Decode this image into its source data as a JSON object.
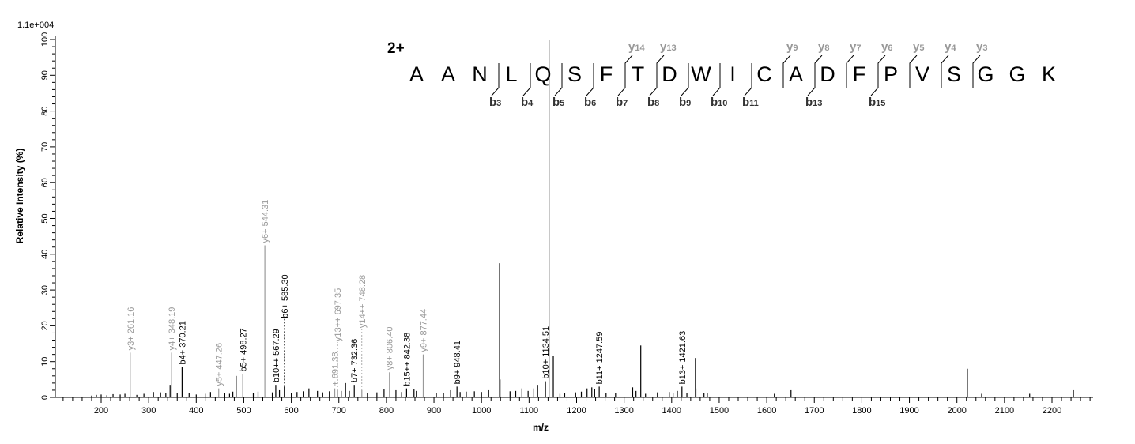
{
  "chart_data": {
    "type": "bar",
    "xlabel": "m/z",
    "ylabel": "Relative  Intensity (%)",
    "scale_label": "1.1e+004",
    "xlim": [
      103,
      2286
    ],
    "ylim": [
      0,
      100
    ],
    "x_ticks": [
      200,
      300,
      400,
      500,
      600,
      700,
      800,
      900,
      1000,
      1100,
      1200,
      1300,
      1400,
      1500,
      1600,
      1700,
      1800,
      1900,
      2000,
      2100,
      2200
    ],
    "y_ticks": [
      0,
      10,
      20,
      30,
      40,
      50,
      60,
      70,
      80,
      90,
      100
    ],
    "grid": false,
    "colors": {
      "b_ion": "#000000",
      "y_ion": "#999999",
      "unlabeled": "#000000"
    },
    "charge_label": "2+",
    "sequence": [
      "A",
      "A",
      "N",
      "L",
      "Q",
      "S",
      "F",
      "T",
      "D",
      "W",
      "I",
      "C",
      "A",
      "D",
      "F",
      "P",
      "V",
      "S",
      "G",
      "G",
      "K"
    ],
    "b_ions": [
      3,
      4,
      5,
      6,
      7,
      8,
      9,
      10,
      11,
      13,
      15
    ],
    "y_ions": [
      14,
      13,
      9,
      8,
      7,
      6,
      5,
      4,
      3
    ],
    "labeled_peaks": [
      {
        "mz": 261.16,
        "intensity": 12.5,
        "label": "y3+ 261.16",
        "ion": "y"
      },
      {
        "mz": 348.19,
        "intensity": 12.5,
        "label": "y4+ 348.19",
        "ion": "y"
      },
      {
        "mz": 370.21,
        "intensity": 8.5,
        "label": "b4+ 370.21",
        "ion": "b"
      },
      {
        "mz": 447.26,
        "intensity": 2.5,
        "label": "y5+ 447.26",
        "ion": "y"
      },
      {
        "mz": 498.27,
        "intensity": 6.5,
        "label": "b5+ 498.27",
        "ion": "b"
      },
      {
        "mz": 544.31,
        "intensity": 42.5,
        "label": "y6+ 544.31",
        "ion": "y"
      },
      {
        "mz": 567.29,
        "intensity": 3.5,
        "label": "b10++ 567.29",
        "ion": "b"
      },
      {
        "mz": 585.3,
        "intensity": 3.0,
        "label": "b6+ 585.30",
        "ion": "b"
      },
      {
        "mz": 691.38,
        "intensity": 2.5,
        "label": "+ 691.38",
        "ion": "y"
      },
      {
        "mz": 697.35,
        "intensity": 2.0,
        "label": "y13++ 697.35",
        "ion": "y"
      },
      {
        "mz": 732.36,
        "intensity": 3.5,
        "label": "b7+ 732.36",
        "ion": "b"
      },
      {
        "mz": 748.28,
        "intensity": 2.0,
        "label": "y14++ 748.28",
        "ion": "y"
      },
      {
        "mz": 806.4,
        "intensity": 7.0,
        "label": "y8+ 806.40",
        "ion": "y"
      },
      {
        "mz": 842.38,
        "intensity": 2.5,
        "label": "b15++ 842.38",
        "ion": "b"
      },
      {
        "mz": 877.44,
        "intensity": 12.0,
        "label": "y9+ 877.44",
        "ion": "y"
      },
      {
        "mz": 948.41,
        "intensity": 3.0,
        "label": "b9+ 948.41",
        "ion": "b"
      },
      {
        "mz": 1134.51,
        "intensity": 4.5,
        "label": "b10+ 1134.51",
        "ion": "b"
      },
      {
        "mz": 1247.59,
        "intensity": 3.0,
        "label": "b11+ 1247.59",
        "ion": "b"
      },
      {
        "mz": 1421.63,
        "intensity": 3.0,
        "label": "b13+ 1421.63",
        "ion": "b"
      }
    ],
    "unlabeled_peaks": [
      [
        1038,
        37.5
      ],
      [
        1039,
        5
      ],
      [
        1142,
        100
      ],
      [
        1151,
        11.5
      ],
      [
        1335,
        14.5
      ],
      [
        1450,
        11
      ],
      [
        2022,
        8
      ],
      [
        484,
        6
      ],
      [
        345,
        3.5
      ],
      [
        1651,
        2
      ],
      [
        2245,
        2
      ],
      [
        1616,
        1
      ],
      [
        2052,
        1
      ],
      [
        2153,
        1
      ],
      [
        180,
        0.5
      ],
      [
        190,
        0.7
      ],
      [
        200,
        0.8
      ],
      [
        212,
        0.6
      ],
      [
        225,
        0.9
      ],
      [
        240,
        0.8
      ],
      [
        250,
        1
      ],
      [
        275,
        0.7
      ],
      [
        290,
        1
      ],
      [
        310,
        1.5
      ],
      [
        325,
        1.4
      ],
      [
        336,
        1.2
      ],
      [
        360,
        1.3
      ],
      [
        385,
        1.2
      ],
      [
        400,
        0.8
      ],
      [
        420,
        1
      ],
      [
        430,
        1.5
      ],
      [
        460,
        1.2
      ],
      [
        470,
        1
      ],
      [
        477,
        1.6
      ],
      [
        520,
        1.2
      ],
      [
        530,
        1.6
      ],
      [
        560,
        1.4
      ],
      [
        575,
        2
      ],
      [
        600,
        1.3
      ],
      [
        612,
        1.5
      ],
      [
        625,
        1.7
      ],
      [
        637,
        2.5
      ],
      [
        655,
        1.8
      ],
      [
        666,
        1.4
      ],
      [
        680,
        1.7
      ],
      [
        705,
        1.8
      ],
      [
        714,
        4
      ],
      [
        722,
        1.8
      ],
      [
        760,
        1.3
      ],
      [
        780,
        1.4
      ],
      [
        795,
        2.2
      ],
      [
        820,
        2
      ],
      [
        832,
        1.5
      ],
      [
        858,
        2.2
      ],
      [
        863,
        1.8
      ],
      [
        905,
        1.2
      ],
      [
        920,
        1.3
      ],
      [
        935,
        2
      ],
      [
        955,
        1.5
      ],
      [
        968,
        1.6
      ],
      [
        985,
        1.7
      ],
      [
        1000,
        1.5
      ],
      [
        1015,
        2
      ],
      [
        1060,
        1.7
      ],
      [
        1072,
        1.8
      ],
      [
        1085,
        2.5
      ],
      [
        1098,
        1.8
      ],
      [
        1110,
        2.5
      ],
      [
        1118,
        3.5
      ],
      [
        1165,
        1
      ],
      [
        1175,
        1.2
      ],
      [
        1198,
        1.4
      ],
      [
        1210,
        1.6
      ],
      [
        1222,
        2.5
      ],
      [
        1232,
        2.8
      ],
      [
        1238,
        2.3
      ],
      [
        1262,
        1.3
      ],
      [
        1282,
        1.2
      ],
      [
        1318,
        2.8
      ],
      [
        1325,
        1.8
      ],
      [
        1345,
        1
      ],
      [
        1370,
        1.4
      ],
      [
        1395,
        1.5
      ],
      [
        1403,
        1.2
      ],
      [
        1412,
        1.8
      ],
      [
        1432,
        1.2
      ],
      [
        1451,
        2.5
      ],
      [
        1468,
        1.3
      ],
      [
        1475,
        1.1
      ]
    ]
  }
}
